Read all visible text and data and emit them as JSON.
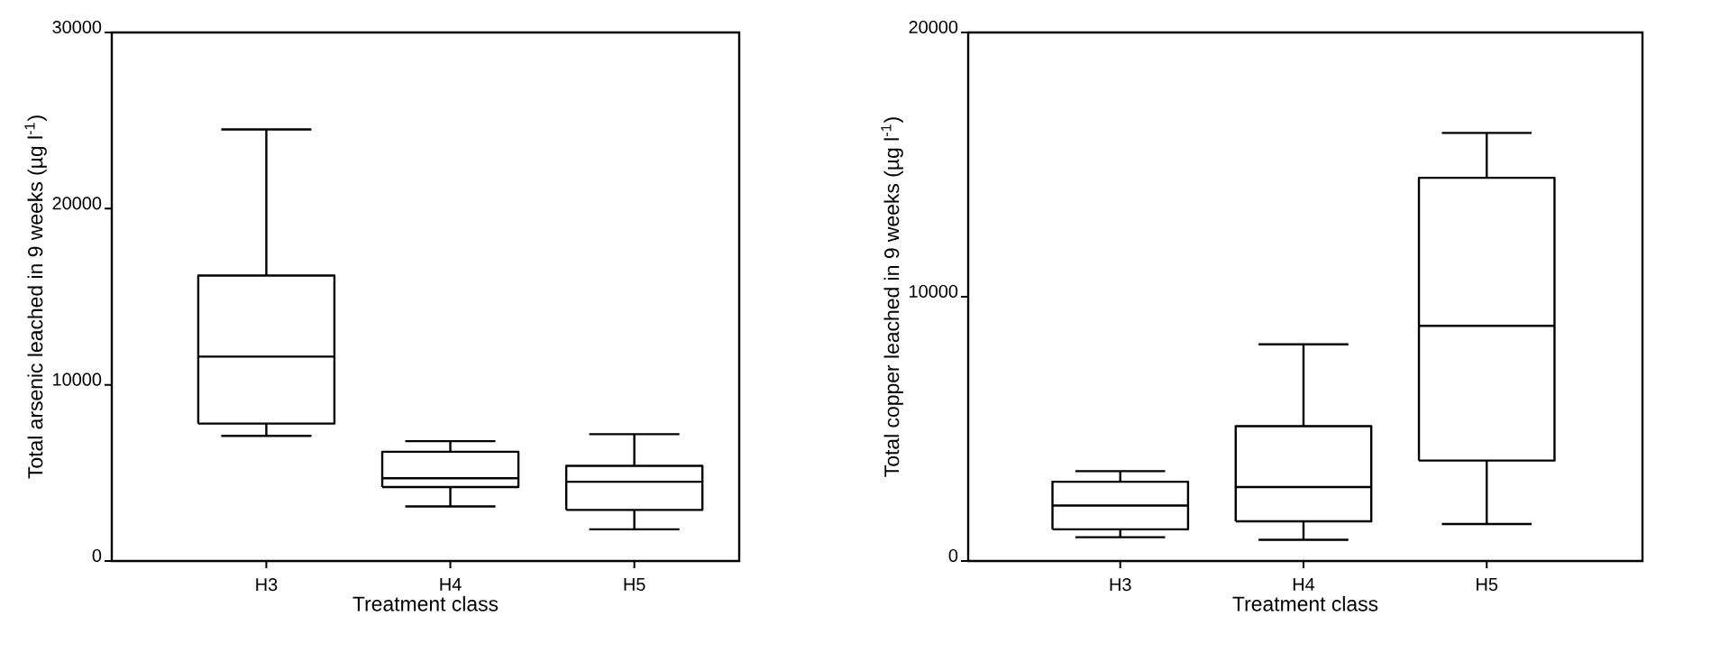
{
  "chart_data": [
    {
      "type": "box",
      "xlabel": "Treatment class",
      "ylabel": "Total arsenic leached in 9 weeks (µg l$^{-1}$)",
      "categories": [
        "H3",
        "H4",
        "H5"
      ],
      "boxes": [
        {
          "low": 7100,
          "q1": 7800,
          "median": 11600,
          "q3": 16200,
          "high": 24500
        },
        {
          "low": 3100,
          "q1": 4200,
          "median": 4700,
          "q3": 6200,
          "high": 6800
        },
        {
          "low": 1800,
          "q1": 2900,
          "median": 4500,
          "q3": 5400,
          "high": 7200
        }
      ],
      "ylim": [
        0,
        30000
      ],
      "yticks": [
        0,
        10000,
        20000,
        30000
      ]
    },
    {
      "type": "box",
      "xlabel": "Treatment class",
      "ylabel": "Total copper leached in 9 weeks (µg l$^{-1}$)",
      "categories": [
        "H3",
        "H4",
        "H5"
      ],
      "boxes": [
        {
          "low": 900,
          "q1": 1200,
          "median": 2100,
          "q3": 3000,
          "high": 3400
        },
        {
          "low": 800,
          "q1": 1500,
          "median": 2800,
          "q3": 5100,
          "high": 8200
        },
        {
          "low": 1400,
          "q1": 3800,
          "median": 8900,
          "q3": 14500,
          "high": 16200
        }
      ],
      "ylim": [
        0,
        20000
      ],
      "yticks": [
        0,
        10000,
        20000
      ]
    }
  ]
}
